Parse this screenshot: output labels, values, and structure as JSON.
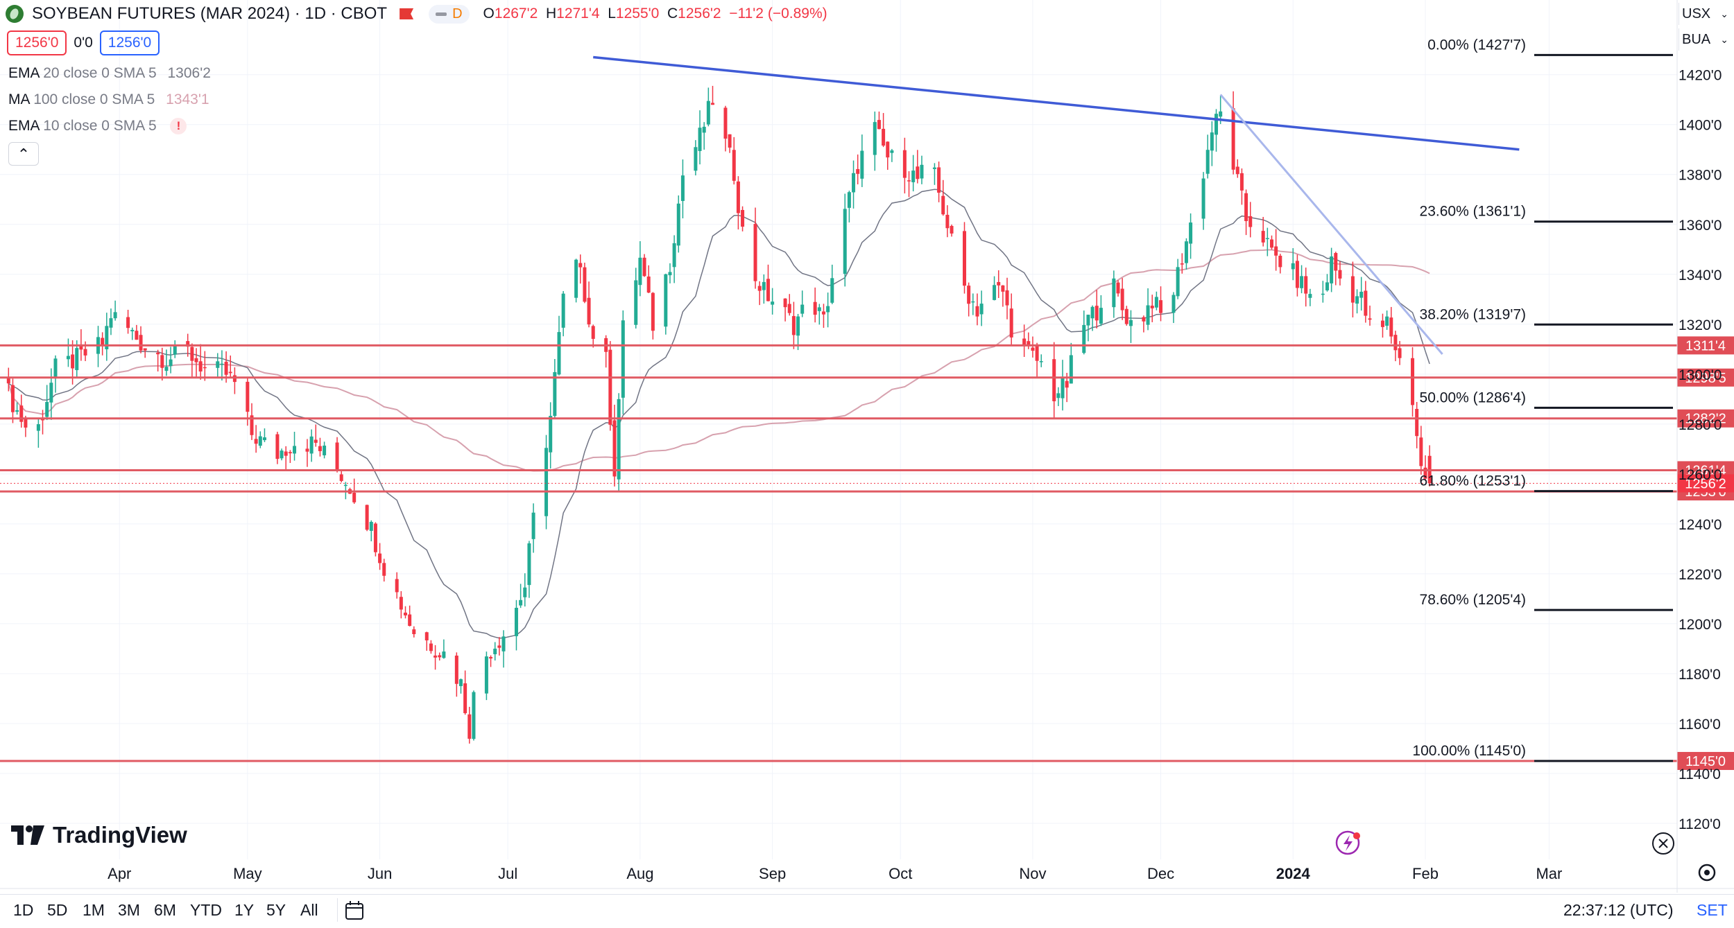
{
  "header": {
    "title": "SOYBEAN FUTURES (MAR 2024) · 1D · CBOT",
    "interval_badge": "D",
    "open_label": "O",
    "open": "1267'2",
    "high_label": "H",
    "high": "1271'4",
    "low_label": "L",
    "low": "1255'0",
    "close_label": "C",
    "close": "1256'2",
    "change": "−11'2 (−0.89%)",
    "sell_price": "1256'0",
    "spread": "0'0",
    "buy_price": "1256'0"
  },
  "indicators": [
    {
      "label": "EMA",
      "params": "20 close 0 SMA 5",
      "value": "1306'2",
      "color": "#9598a1"
    },
    {
      "label": "MA",
      "params": "100 close 0 SMA 5",
      "value": "1343'1",
      "color": "#d7a1ae"
    },
    {
      "label": "EMA",
      "params": "10 close 0 SMA 5",
      "value": "!",
      "color": "#f23645"
    }
  ],
  "right_controls": {
    "currency": "USX",
    "unit": "BUA"
  },
  "timeframes": [
    "1D",
    "5D",
    "1M",
    "3M",
    "6M",
    "YTD",
    "1Y",
    "5Y",
    "All"
  ],
  "clock": "22:37:12 (UTC)",
  "timezone_link": "SET",
  "brand": "TradingView",
  "colors": {
    "up": "#22ab94",
    "down": "#f23645",
    "fib_line": "#131722",
    "trend_main": "#3f5bd6",
    "trend_light": "#a9b7ec",
    "hline": "#e05a63",
    "ema20": "#707484",
    "ma100": "#d7a1ae"
  },
  "chart_data": {
    "type": "candlestick",
    "title": "SOYBEAN FUTURES (MAR 2024) · 1D · CBOT",
    "price_format": "cents'eighths",
    "ylim": [
      1110,
      1432
    ],
    "y_ticks": [
      "1120'0",
      "1140'0",
      "1160'0",
      "1180'0",
      "1200'0",
      "1220'0",
      "1240'0",
      "1260'0",
      "1280'0",
      "1300'0",
      "1320'0",
      "1340'0",
      "1360'0",
      "1380'0",
      "1400'0",
      "1420'0"
    ],
    "x_months": [
      "Apr",
      "May",
      "Jun",
      "Jul",
      "Aug",
      "Sep",
      "Oct",
      "Nov",
      "Dec",
      "2024",
      "Feb",
      "Mar"
    ],
    "xlim": [
      "2023-03-04",
      "2024-03-31"
    ],
    "month_dates": [
      "2023-04-01",
      "2023-05-01",
      "2023-06-01",
      "2023-07-01",
      "2023-08-01",
      "2023-09-01",
      "2023-10-01",
      "2023-11-01",
      "2023-12-01",
      "2024-01-01",
      "2024-02-01",
      "2024-03-01"
    ],
    "close_path": [
      [
        "2023-03-04",
        1300
      ],
      [
        "2023-03-08",
        1285
      ],
      [
        "2023-03-12",
        1273
      ],
      [
        "2023-03-17",
        1302
      ],
      [
        "2023-03-22",
        1306
      ],
      [
        "2023-03-28",
        1312
      ],
      [
        "2023-03-30",
        1324
      ],
      [
        "2023-04-03",
        1318
      ],
      [
        "2023-04-07",
        1311
      ],
      [
        "2023-04-12",
        1306
      ],
      [
        "2023-04-17",
        1309
      ],
      [
        "2023-04-21",
        1302
      ],
      [
        "2023-04-26",
        1300
      ],
      [
        "2023-04-28",
        1296
      ],
      [
        "2023-05-02",
        1276
      ],
      [
        "2023-05-08",
        1268
      ],
      [
        "2023-05-12",
        1273
      ],
      [
        "2023-05-17",
        1272
      ],
      [
        "2023-05-22",
        1262
      ],
      [
        "2023-05-25",
        1255
      ],
      [
        "2023-05-30",
        1238
      ],
      [
        "2023-06-02",
        1223
      ],
      [
        "2023-06-06",
        1208
      ],
      [
        "2023-06-09",
        1197
      ],
      [
        "2023-06-13",
        1192
      ],
      [
        "2023-06-16",
        1188
      ],
      [
        "2023-06-20",
        1176
      ],
      [
        "2023-06-22",
        1158
      ],
      [
        "2023-06-24",
        1183
      ],
      [
        "2023-06-28",
        1192
      ],
      [
        "2023-07-01",
        1198
      ],
      [
        "2023-07-05",
        1215
      ],
      [
        "2023-07-08",
        1255
      ],
      [
        "2023-07-11",
        1283
      ],
      [
        "2023-07-14",
        1330
      ],
      [
        "2023-07-18",
        1346
      ],
      [
        "2023-07-20",
        1320
      ],
      [
        "2023-07-24",
        1305
      ],
      [
        "2023-07-26",
        1262
      ],
      [
        "2023-07-28",
        1318
      ],
      [
        "2023-08-01",
        1346
      ],
      [
        "2023-08-04",
        1320
      ],
      [
        "2023-08-08",
        1345
      ],
      [
        "2023-08-11",
        1380
      ],
      [
        "2023-08-15",
        1395
      ],
      [
        "2023-08-18",
        1410
      ],
      [
        "2023-08-21",
        1392
      ],
      [
        "2023-08-23",
        1381
      ],
      [
        "2023-08-26",
        1345
      ],
      [
        "2023-08-30",
        1333
      ],
      [
        "2023-09-02",
        1328
      ],
      [
        "2023-09-06",
        1320
      ],
      [
        "2023-09-10",
        1330
      ],
      [
        "2023-09-13",
        1321
      ],
      [
        "2023-09-17",
        1357
      ],
      [
        "2023-09-21",
        1384
      ],
      [
        "2023-09-25",
        1398
      ],
      [
        "2023-09-28",
        1387
      ],
      [
        "2023-10-02",
        1383
      ],
      [
        "2023-10-05",
        1378
      ],
      [
        "2023-10-08",
        1385
      ],
      [
        "2023-10-12",
        1360
      ],
      [
        "2023-10-15",
        1338
      ],
      [
        "2023-10-19",
        1326
      ],
      [
        "2023-10-22",
        1334
      ],
      [
        "2023-10-25",
        1333
      ],
      [
        "2023-10-28",
        1312
      ],
      [
        "2023-10-31",
        1308
      ],
      [
        "2023-11-03",
        1304
      ],
      [
        "2023-11-06",
        1292
      ],
      [
        "2023-11-09",
        1296
      ],
      [
        "2023-11-12",
        1318
      ],
      [
        "2023-11-16",
        1326
      ],
      [
        "2023-11-19",
        1339
      ],
      [
        "2023-11-22",
        1326
      ],
      [
        "2023-11-25",
        1318
      ],
      [
        "2023-11-29",
        1330
      ],
      [
        "2023-12-02",
        1320
      ],
      [
        "2023-12-06",
        1347
      ],
      [
        "2023-12-10",
        1373
      ],
      [
        "2023-12-13",
        1398
      ],
      [
        "2023-12-15",
        1404
      ],
      [
        "2023-12-18",
        1384
      ],
      [
        "2023-12-21",
        1362
      ],
      [
        "2023-12-24",
        1359
      ],
      [
        "2023-12-27",
        1348
      ],
      [
        "2023-12-30",
        1344
      ],
      [
        "2024-01-03",
        1336
      ],
      [
        "2024-01-07",
        1326
      ],
      [
        "2024-01-10",
        1345
      ],
      [
        "2024-01-13",
        1335
      ],
      [
        "2024-01-17",
        1330
      ],
      [
        "2024-01-20",
        1313
      ],
      [
        "2024-01-23",
        1321
      ],
      [
        "2024-01-25",
        1311
      ],
      [
        "2024-01-27",
        1300
      ],
      [
        "2024-01-29",
        1290
      ],
      [
        "2024-01-31",
        1262
      ],
      [
        "2024-02-02",
        1256
      ]
    ],
    "last_close": 1256.25,
    "fibonacci": [
      {
        "label": "0.00% (1427'7)",
        "value": 1427.875
      },
      {
        "label": "23.60% (1361'1)",
        "value": 1361.125
      },
      {
        "label": "38.20% (1319'7)",
        "value": 1319.875
      },
      {
        "label": "50.00% (1286'4)",
        "value": 1286.5
      },
      {
        "label": "61.80% (1253'1)",
        "value": 1253.125
      },
      {
        "label": "78.60% (1205'4)",
        "value": 1205.5
      },
      {
        "label": "100.00% (1145'0)",
        "value": 1145.0
      }
    ],
    "horizontal_lines": [
      {
        "label": "1311'4",
        "value": 1311.5
      },
      {
        "label": "1298'5",
        "value": 1298.625
      },
      {
        "label": "1282'2",
        "value": 1282.25
      },
      {
        "label": "1261'4",
        "value": 1261.5
      },
      {
        "label": "1253'0",
        "value": 1253.0
      },
      {
        "label": "1145'0",
        "value": 1145.0
      }
    ],
    "current_price_label": "1256'2",
    "trendlines": [
      {
        "name": "main",
        "from": [
          "2023-07-21",
          1427
        ],
        "to": [
          "2024-02-23",
          1390
        ]
      },
      {
        "name": "short",
        "from": [
          "2023-12-15",
          1412
        ],
        "to": [
          "2024-02-05",
          1308
        ]
      }
    ],
    "ema20_last": "1306'2",
    "ma100_last": "1343'1"
  }
}
